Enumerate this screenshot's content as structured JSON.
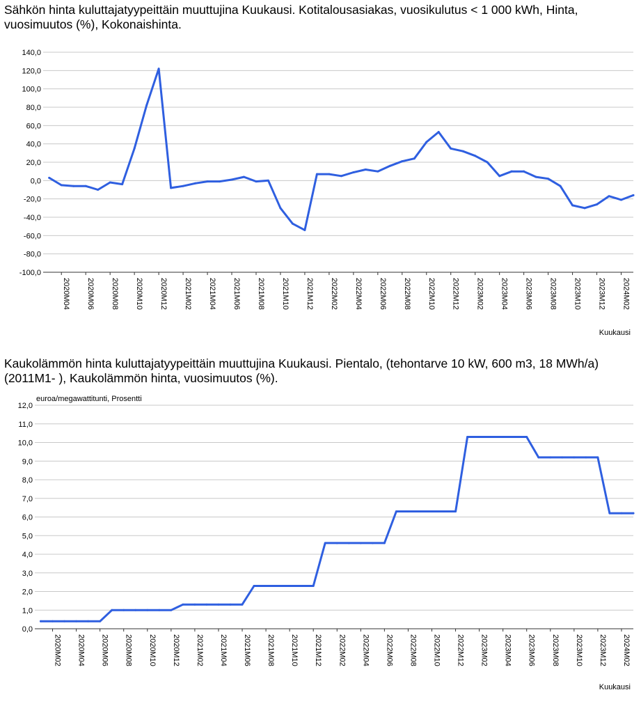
{
  "chart_data": [
    {
      "type": "line",
      "title": "Sähkön hinta kuluttajatyypeittäin muuttujina Kuukausi. Kotitalousasiakas, vuosikulutus < 1 000 kWh, Hinta, vuosimuutos (%), Kokonaishinta.",
      "xlabel": "Kuukausi",
      "ylabel": "",
      "ylim": [
        -100,
        140
      ],
      "yticks": [
        "140,0",
        "120,0",
        "100,0",
        "80,0",
        "60,0",
        "40,0",
        "20,0",
        "0,0",
        "-20,0",
        "-40,0",
        "-60,0",
        "-80,0",
        "-100,0"
      ],
      "grid": true,
      "line_color": "#2f5fe0",
      "x": [
        "2020M03",
        "2020M04",
        "2020M05",
        "2020M06",
        "2020M07",
        "2020M08",
        "2020M09",
        "2020M10",
        "2020M11",
        "2020M12",
        "2021M01",
        "2021M02",
        "2021M03",
        "2021M04",
        "2021M05",
        "2021M06",
        "2021M07",
        "2021M08",
        "2021M09",
        "2021M10",
        "2021M11",
        "2021M12",
        "2022M01",
        "2022M02",
        "2022M03",
        "2022M04",
        "2022M05",
        "2022M06",
        "2022M07",
        "2022M08",
        "2022M09",
        "2022M10",
        "2022M11",
        "2022M12",
        "2023M01",
        "2023M02",
        "2023M03",
        "2023M04",
        "2023M05",
        "2023M06",
        "2023M07",
        "2023M08",
        "2023M09",
        "2023M10",
        "2023M11",
        "2023M12",
        "2024M01",
        "2024M02",
        "2024M03"
      ],
      "x_tick_labels": [
        "2020M04",
        "2020M06",
        "2020M08",
        "2020M10",
        "2020M12",
        "2021M02",
        "2021M04",
        "2021M06",
        "2021M08",
        "2021M10",
        "2021M12",
        "2022M02",
        "2022M04",
        "2022M06",
        "2022M08",
        "2022M10",
        "2022M12",
        "2023M02",
        "2023M04",
        "2023M06",
        "2023M08",
        "2023M10",
        "2023M12",
        "2024M02"
      ],
      "series": [
        {
          "values": [
            3,
            -5,
            -6,
            -6,
            -10,
            -2,
            -4,
            35,
            82,
            122,
            -8,
            -6,
            -3,
            -1,
            -1,
            1,
            4,
            -1,
            0,
            -30,
            -47,
            -54,
            7,
            7,
            5,
            9,
            12,
            10,
            16,
            21,
            24,
            42,
            53,
            35,
            32,
            27,
            20,
            5,
            10,
            10,
            4,
            2,
            -6,
            -27,
            -30,
            -26,
            -17,
            -21,
            -16
          ]
        }
      ]
    },
    {
      "type": "line",
      "title": "Kaukolämmön hinta kuluttajatyypeittäin muuttujina Kuukausi. Pientalo, (tehontarve 10 kW, 600 m3, 18 MWh/a) (2011M1- ), Kaukolämmön hinta, vuosimuutos (%).",
      "xlabel": "Kuukausi",
      "ylabel": "euroa/megawattitunti, Prosentti",
      "ylim": [
        0,
        12
      ],
      "yticks": [
        "12,0",
        "11,0",
        "10,0",
        "9,0",
        "8,0",
        "7,0",
        "6,0",
        "5,0",
        "4,0",
        "3,0",
        "2,0",
        "1,0",
        "0,0"
      ],
      "grid": true,
      "line_color": "#2f5fe0",
      "x": [
        "2020M01",
        "2020M02",
        "2020M03",
        "2020M04",
        "2020M05",
        "2020M06",
        "2020M07",
        "2020M08",
        "2020M09",
        "2020M10",
        "2020M11",
        "2020M12",
        "2021M01",
        "2021M02",
        "2021M03",
        "2021M04",
        "2021M05",
        "2021M06",
        "2021M07",
        "2021M08",
        "2021M09",
        "2021M10",
        "2021M11",
        "2021M12",
        "2022M01",
        "2022M02",
        "2022M03",
        "2022M04",
        "2022M05",
        "2022M06",
        "2022M07",
        "2022M08",
        "2022M09",
        "2022M10",
        "2022M11",
        "2022M12",
        "2023M01",
        "2023M02",
        "2023M03",
        "2023M04",
        "2023M05",
        "2023M06",
        "2023M07",
        "2023M08",
        "2023M09",
        "2023M10",
        "2023M11",
        "2023M12",
        "2024M01",
        "2024M02",
        "2024M03"
      ],
      "x_tick_labels": [
        "2020M02",
        "2020M04",
        "2020M06",
        "2020M08",
        "2020M10",
        "2020M12",
        "2021M02",
        "2021M04",
        "2021M06",
        "2021M08",
        "2021M10",
        "2021M12",
        "2022M02",
        "2022M04",
        "2022M06",
        "2022M08",
        "2022M10",
        "2022M12",
        "2023M02",
        "2023M04",
        "2023M06",
        "2023M08",
        "2023M10",
        "2023M12",
        "2024M02"
      ],
      "series": [
        {
          "values": [
            0.4,
            0.4,
            0.4,
            0.4,
            0.4,
            0.4,
            1.0,
            1.0,
            1.0,
            1.0,
            1.0,
            1.0,
            1.3,
            1.3,
            1.3,
            1.3,
            1.3,
            1.3,
            2.3,
            2.3,
            2.3,
            2.3,
            2.3,
            2.3,
            4.6,
            4.6,
            4.6,
            4.6,
            4.6,
            4.6,
            6.3,
            6.3,
            6.3,
            6.3,
            6.3,
            6.3,
            10.3,
            10.3,
            10.3,
            10.3,
            10.3,
            10.3,
            9.2,
            9.2,
            9.2,
            9.2,
            9.2,
            9.2,
            6.2,
            6.2,
            6.2
          ]
        }
      ]
    }
  ]
}
